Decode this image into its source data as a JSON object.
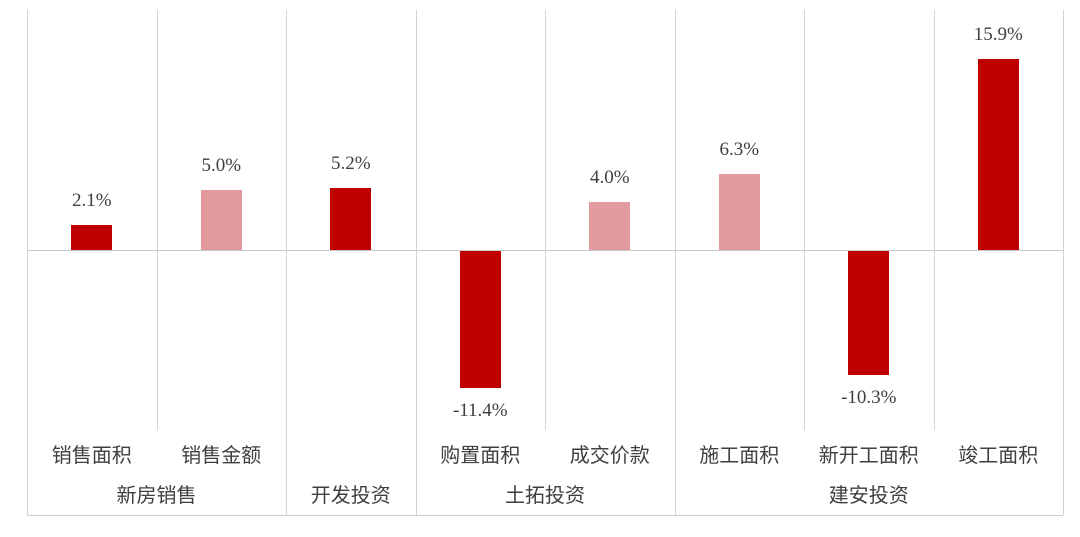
{
  "chart_data": {
    "type": "bar",
    "title": "",
    "xlabel": "",
    "ylabel": "",
    "unit": "%",
    "ylim": [
      -21.7,
      20.0
    ],
    "legend": "none",
    "grid": "vertical-group-dividers",
    "baseline": 0,
    "palette": {
      "dark_red": "#c00000",
      "light_pink": "#e29a9e"
    },
    "line_color": "#d4d4d4",
    "text_color": "#3f3f3f",
    "groups": [
      {
        "label": "新房销售",
        "bars": [
          {
            "category": "销售面积",
            "value": 2.1,
            "display": "2.1%",
            "tone": "dark_red"
          },
          {
            "category": "销售金额",
            "value": 5.0,
            "display": "5.0%",
            "tone": "light_pink"
          }
        ]
      },
      {
        "label": "开发投资",
        "bars": [
          {
            "category": "",
            "value": 5.2,
            "display": "5.2%",
            "tone": "dark_red"
          }
        ]
      },
      {
        "label": "土拓投资",
        "bars": [
          {
            "category": "购置面积",
            "value": -11.4,
            "display": "-11.4%",
            "tone": "dark_red"
          },
          {
            "category": "成交价款",
            "value": 4.0,
            "display": "4.0%",
            "tone": "light_pink"
          }
        ]
      },
      {
        "label": "建安投资",
        "bars": [
          {
            "category": "施工面积",
            "value": 6.3,
            "display": "6.3%",
            "tone": "light_pink"
          },
          {
            "category": "新开工面积",
            "value": -10.3,
            "display": "-10.3%",
            "tone": "dark_red"
          },
          {
            "category": "竣工面积",
            "value": 15.9,
            "display": "15.9%",
            "tone": "dark_red"
          }
        ]
      }
    ]
  }
}
